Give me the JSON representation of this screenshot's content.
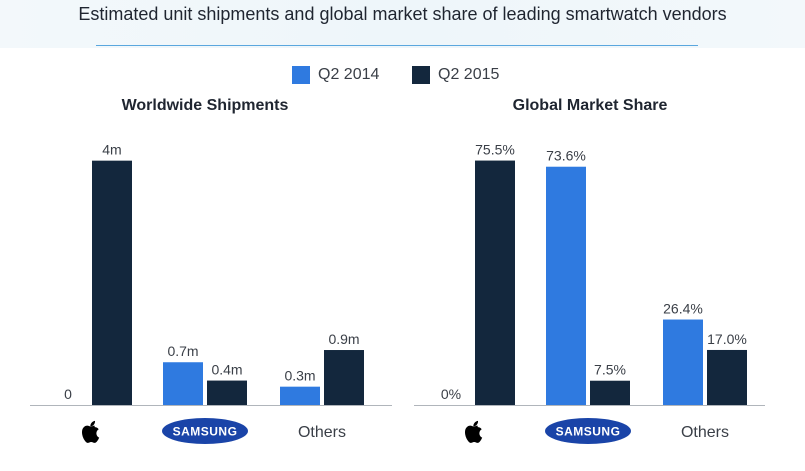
{
  "title": "Estimated unit shipments and global market share of leading smartwatch vendors",
  "legend": [
    {
      "label": "Q2 2014",
      "color": "#2f7ae0"
    },
    {
      "label": "Q2 2015",
      "color": "#13273d"
    }
  ],
  "vendors": {
    "apple_logo": "apple-icon",
    "samsung_logo_text": "SAMSUNG",
    "others_label": "Others"
  },
  "colors": {
    "q2_2014": "#2f7ae0",
    "q2_2015": "#13273d",
    "samsung_blue": "#1a44a8"
  },
  "chart_data": [
    {
      "type": "bar",
      "title": "Worldwide Shipments",
      "categories": [
        "Apple",
        "Samsung",
        "Others"
      ],
      "series": [
        {
          "name": "Q2 2014",
          "values": [
            0,
            0.7,
            0.3
          ],
          "labels": [
            "0",
            "0.7m",
            "0.3m"
          ]
        },
        {
          "name": "Q2 2015",
          "values": [
            4,
            0.4,
            0.9
          ],
          "labels": [
            "4m",
            "0.4m",
            "0.9m"
          ]
        }
      ],
      "ylim": [
        0,
        4.24
      ],
      "grid": false
    },
    {
      "type": "bar",
      "title": "Global Market Share",
      "categories": [
        "Apple",
        "Samsung",
        "Others"
      ],
      "series": [
        {
          "name": "Q2 2014",
          "values": [
            0,
            73.6,
            26.4
          ],
          "labels": [
            "0%",
            "73.6%",
            "26.4%"
          ]
        },
        {
          "name": "Q2 2015",
          "values": [
            75.5,
            7.5,
            17.0
          ],
          "labels": [
            "75.5%",
            "7.5%",
            "17.0%"
          ]
        }
      ],
      "ylim": [
        0,
        80
      ],
      "grid": false
    }
  ]
}
